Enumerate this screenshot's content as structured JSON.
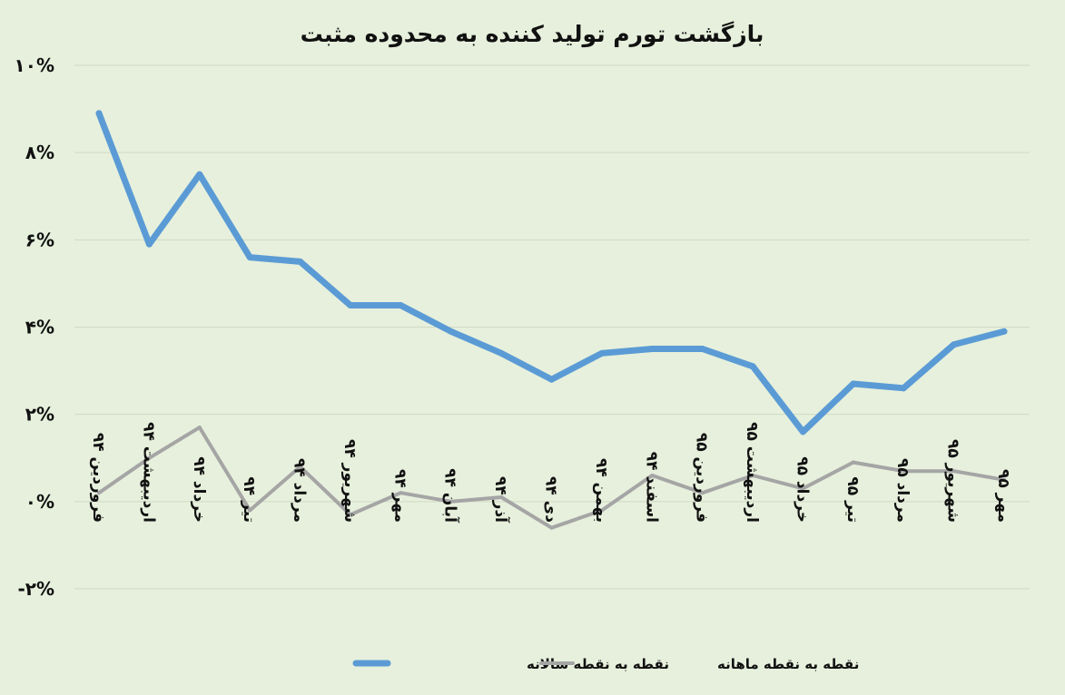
{
  "chart_data": {
    "type": "line",
    "title": "بازگشت تورم تولید کننده به محدوده مثبت",
    "xlabel": "",
    "ylabel": "",
    "ylim": [
      -2,
      10
    ],
    "yticks": [
      10,
      8,
      6,
      4,
      2,
      0,
      -2
    ],
    "ytick_labels": [
      "۱۰%",
      "۸%",
      "۶%",
      "۴%",
      "۲%",
      "۰%",
      "-۲%"
    ],
    "grid": true,
    "legend_position": "bottom",
    "categories": [
      "فروردین ۹۴",
      "اردیبهشت ۹۴",
      "خرداد ۹۴",
      "تیر ۹۴",
      "مرداد ۹۴",
      "شهریور ۹۴",
      "مهر ۹۴",
      "آبان ۹۴",
      "آذر ۹۴",
      "دی ۹۴",
      "بهمن ۹۴",
      "اسفند ۹۴",
      "فروردین ۹۵",
      "اردیبهشت ۹۵",
      "خرداد ۹۵",
      "تیر ۹۵",
      "مرداد ۹۵",
      "شهریور ۹۵",
      "مهر ۹۵"
    ],
    "series": [
      {
        "name": "نقطه به نقطه سالانه",
        "color": "#5b9bd5",
        "values": [
          8.9,
          5.9,
          7.5,
          5.6,
          5.5,
          4.5,
          4.5,
          3.9,
          3.4,
          2.8,
          3.4,
          3.5,
          3.5,
          3.1,
          1.6,
          2.7,
          2.6,
          3.6,
          3.9
        ]
      },
      {
        "name": "نقطه به نقطه ماهانه",
        "color": "#a5a5a5",
        "values": [
          0.2,
          1.0,
          1.7,
          -0.2,
          0.8,
          -0.3,
          0.2,
          0.0,
          0.1,
          -0.6,
          -0.2,
          0.6,
          0.2,
          0.6,
          0.3,
          0.9,
          0.7,
          0.7,
          0.5
        ]
      }
    ]
  }
}
